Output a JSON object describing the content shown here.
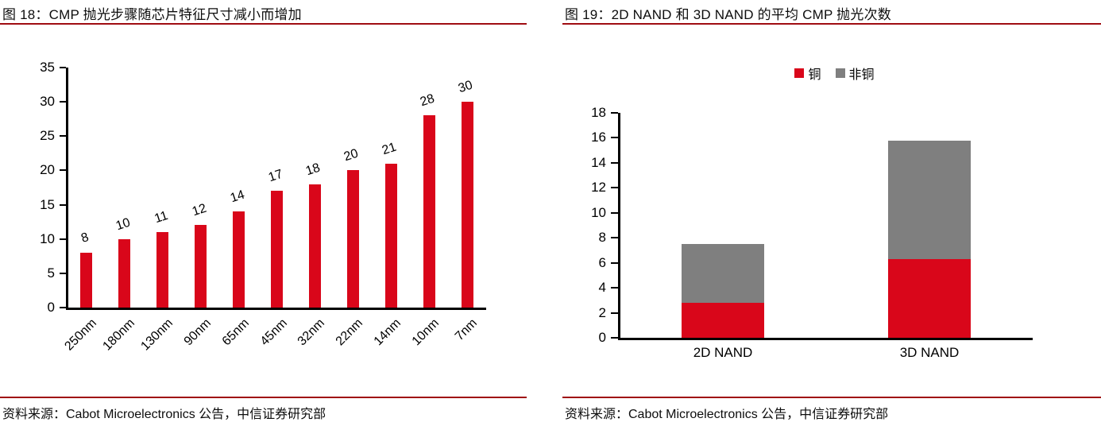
{
  "page": {
    "background": "#ffffff"
  },
  "colors": {
    "bar_red": "#d9061a",
    "non_copper_gray": "#7f7f7f",
    "rule_red": "#a00d12",
    "axis_black": "#000000"
  },
  "panels": [
    {
      "figure_title": "图 18：CMP 抛光步骤随芯片特征尺寸减小而增加",
      "source": "资料来源：Cabot Microelectronics 公告，中信证券研究部"
    },
    {
      "figure_title": "图 19：2D NAND 和 3D NAND 的平均 CMP 抛光次数",
      "source": "资料来源：Cabot Microelectronics 公告，中信证券研究部"
    }
  ],
  "chart_data": [
    {
      "type": "bar",
      "title": "图 18：CMP 抛光步骤随芯片特征尺寸减小而增加",
      "categories": [
        "250nm",
        "180nm",
        "130nm",
        "90nm",
        "65nm",
        "45nm",
        "32nm",
        "22nm",
        "14nm",
        "10nm",
        "7nm"
      ],
      "values": [
        8,
        10,
        11,
        12,
        14,
        17,
        18,
        20,
        21,
        28,
        30
      ],
      "data_labels": [
        8,
        10,
        11,
        12,
        14,
        17,
        18,
        20,
        21,
        28,
        30
      ],
      "xlabel": "",
      "ylabel": "",
      "ylim": [
        0,
        35
      ],
      "ytick_step": 5,
      "yticks": [
        0,
        5,
        10,
        15,
        20,
        25,
        30,
        35
      ],
      "grid": false,
      "legend": null,
      "bar_color": "#d9061a"
    },
    {
      "type": "bar",
      "subtype": "stacked",
      "title": "图 19：2D NAND 和 3D NAND 的平均 CMP 抛光次数",
      "categories": [
        "2D NAND",
        "3D NAND"
      ],
      "series": [
        {
          "name": "铜",
          "color": "#d9061a",
          "values": [
            2.8,
            6.3
          ]
        },
        {
          "name": "非铜",
          "color": "#7f7f7f",
          "values": [
            4.7,
            9.5
          ]
        }
      ],
      "xlabel": "",
      "ylabel": "",
      "ylim": [
        0,
        18
      ],
      "ytick_step": 2,
      "yticks": [
        0,
        2,
        4,
        6,
        8,
        10,
        12,
        14,
        16,
        18
      ],
      "grid": false,
      "legend_position": "top"
    }
  ]
}
